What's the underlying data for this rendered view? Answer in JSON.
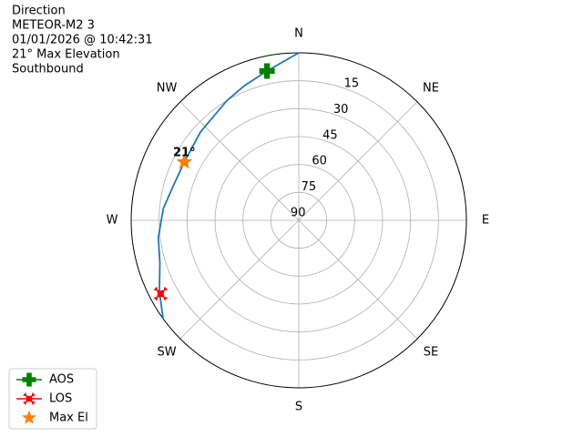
{
  "chart_data": {
    "type": "polar",
    "title_lines": [
      "Direction",
      "METEOR-M2 3",
      "01/01/2026 @ 10:42:31",
      "21° Max Elevation",
      "Southbound"
    ],
    "rlim": [
      90,
      0
    ],
    "rticks": [
      90,
      75,
      60,
      45,
      30,
      15
    ],
    "thetaticks": [
      {
        "value": 0,
        "label": "N"
      },
      {
        "value": 45,
        "label": "NE"
      },
      {
        "value": 90,
        "label": "E"
      },
      {
        "value": 135,
        "label": "SE"
      },
      {
        "value": 180,
        "label": "S"
      },
      {
        "value": 225,
        "label": "SW"
      },
      {
        "value": 270,
        "label": "W"
      },
      {
        "value": 315,
        "label": "NW"
      }
    ],
    "grid": true,
    "track": {
      "color": "#1f77b4",
      "azimuth": [
        0,
        348,
        338,
        329,
        312,
        297,
        285,
        275,
        263,
        253,
        243,
        234
      ],
      "elevation": [
        0,
        8,
        12,
        15,
        19,
        21,
        20,
        17,
        14,
        12,
        6,
        0
      ]
    },
    "markers": [
      {
        "name": "AOS",
        "color": "#008000",
        "marker": "plus",
        "azimuth": 348,
        "elevation": 8
      },
      {
        "name": "LOS",
        "color": "#ff0000",
        "marker": "x",
        "azimuth": 242,
        "elevation": 6
      },
      {
        "name": "Max El",
        "color": "#ff7f0e",
        "marker": "star",
        "azimuth": 297,
        "elevation": 21
      }
    ],
    "annotation": {
      "text": "21°",
      "azimuth": 297,
      "elevation": 21
    },
    "legend": "lower left"
  }
}
